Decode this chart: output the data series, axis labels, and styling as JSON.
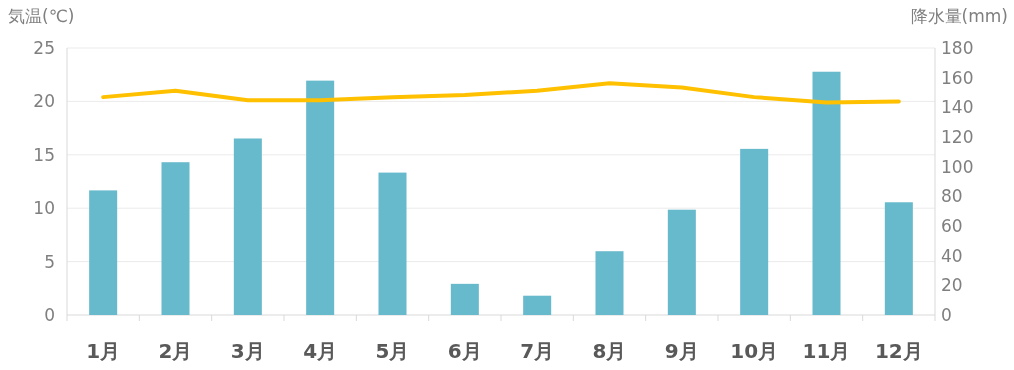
{
  "chart_data": {
    "type": "bar",
    "categories": [
      "1月",
      "2月",
      "3月",
      "4月",
      "5月",
      "6月",
      "7月",
      "8月",
      "9月",
      "10月",
      "11月",
      "12月"
    ],
    "series": [
      {
        "axis": "y2",
        "color": "#67b9cc",
        "values": [
          84,
          103,
          119,
          158,
          96,
          21,
          13,
          43,
          71,
          112,
          164,
          76
        ]
      },
      {
        "type": "line",
        "axis": "y",
        "color": "#ffc000",
        "values": [
          20.4,
          21.0,
          20.1,
          20.1,
          20.4,
          20.6,
          21.0,
          21.7,
          21.3,
          20.4,
          19.9,
          20.0
        ]
      }
    ],
    "ylabel": "気温(℃)",
    "y2label": "降水量(mm)",
    "ylim": [
      0,
      25
    ],
    "yticks": [
      0,
      5,
      10,
      15,
      20,
      25
    ],
    "y2lim": [
      0,
      180
    ],
    "y2ticks": [
      0,
      20,
      40,
      60,
      80,
      100,
      120,
      140,
      160,
      180
    ],
    "grid": "y",
    "marker": "none",
    "line_style": "solid"
  }
}
